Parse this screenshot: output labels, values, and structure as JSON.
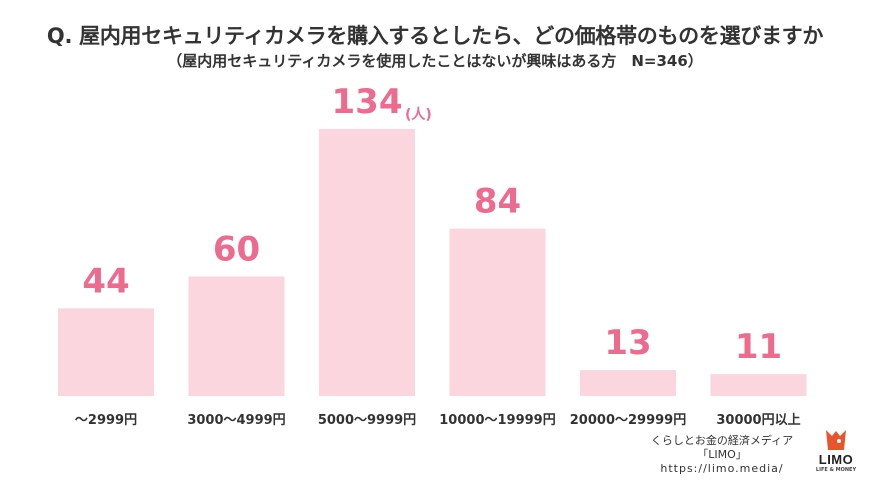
{
  "header": {
    "title": "Q. 屋内用セキュリティカメラを購入するとしたら、どの価格帯のものを選びますか",
    "subtitle": "（屋内用セキュリティカメラを使用したことはないが興味はある方　N=346）"
  },
  "chart_data": {
    "type": "bar",
    "title": "Q. 屋内用セキュリティカメラを購入するとしたら、どの価格帯のものを選びますか",
    "subtitle": "（屋内用セキュリティカメラを使用したことはないが興味はある方　N=346）",
    "categories": [
      "～2999円",
      "3000～4999円",
      "5000～9999円",
      "10000～19999円",
      "20000～29999円",
      "30000円以上"
    ],
    "values": [
      44,
      60,
      134,
      84,
      13,
      11
    ],
    "unit": "(人)",
    "unit_on_category_index": 2,
    "ylim": [
      0,
      134
    ],
    "xlabel": "",
    "ylabel": "",
    "grid": false,
    "colors": {
      "bar": "#fcd6de",
      "label": "#ec6b8f"
    }
  },
  "credit": {
    "line1": "くらしとお金の経済メディア",
    "line2": "「LIMO」",
    "url": "https://limo.media/"
  },
  "logo": {
    "word": "LIMO",
    "tagline": "LIFE & MONEY",
    "color": "#e8542c"
  }
}
